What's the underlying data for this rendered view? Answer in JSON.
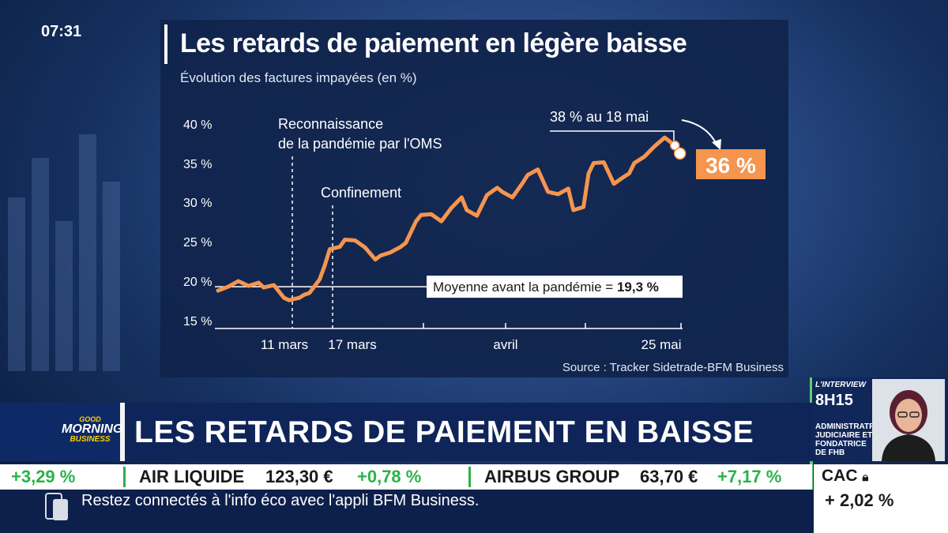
{
  "clock": "07:31",
  "chart_data": {
    "type": "line",
    "title": "Les retards de paiement en légère baisse",
    "subtitle": "Évolution des factures impayées (en %)",
    "y_ticks": [
      "40 %",
      "35 %",
      "30 %",
      "25 %",
      "20 %",
      "15 %"
    ],
    "ylim": [
      15,
      40
    ],
    "x_ticks": [
      "11 mars",
      "17 mars",
      "avril",
      "25 mai"
    ],
    "series": [
      {
        "x": [
          0,
          2,
          4,
          6,
          8,
          9,
          11,
          13,
          14,
          16,
          17,
          18,
          20,
          21,
          22,
          24,
          25,
          27,
          29,
          31,
          32,
          34,
          36,
          37,
          39,
          40,
          42,
          44,
          46,
          48,
          49,
          51,
          53,
          55,
          56,
          58,
          60,
          61,
          63,
          65,
          67,
          69,
          70,
          72,
          73,
          74,
          76,
          78,
          80,
          81,
          82,
          84,
          86,
          88,
          90,
          91
        ],
        "y": [
          18.8,
          19.3,
          20.0,
          19.4,
          19.8,
          19.2,
          19.5,
          17.9,
          17.6,
          17.9,
          18.3,
          18.5,
          20.2,
          21.9,
          24.0,
          24.3,
          25.2,
          25.1,
          24.2,
          22.7,
          23.2,
          23.6,
          24.3,
          24.8,
          27.5,
          28.3,
          28.4,
          27.5,
          29.2,
          30.5,
          28.9,
          28.2,
          30.8,
          31.7,
          31.2,
          30.5,
          32.3,
          33.3,
          34.0,
          31.2,
          30.9,
          31.6,
          28.9,
          29.3,
          33.5,
          34.8,
          34.9,
          32.2,
          33.1,
          33.5,
          34.8,
          35.6,
          36.9,
          38.0,
          37.0,
          36.0
        ]
      }
    ],
    "reference": {
      "label": "Moyenne avant la pandémie = ",
      "value_label": "19,3 %",
      "value": 19.3
    },
    "annotations": {
      "oms": [
        "Reconnaissance",
        "de la pandémie par l'OMS"
      ],
      "confinement": "Confinement",
      "peak": "38 % au 18 mai",
      "last": "36 %"
    },
    "source": "Source : Tracker Sidetrade-BFM Business",
    "line_color": "#f5954e",
    "highlight_color": "#f5954e"
  },
  "lower_third": {
    "logo": [
      "GOOD",
      "MORNING",
      "BUSINESS"
    ],
    "headline": "LES RETARDS DE PAIEMENT EN BAISSE"
  },
  "interview": {
    "label": "L'INTERVIEW",
    "time": "8H15",
    "role": "ADMINISTRATRICE JUDICIAIRE ET FONDATRICE DE FHB"
  },
  "ticker": {
    "first_change": "+3,29 %",
    "stock1_name": "AIR LIQUIDE",
    "stock1_price": "123,30 €",
    "stock1_change": "+0,78 %",
    "stock2_name": "AIRBUS GROUP",
    "stock2_price": "63,70 €",
    "stock2_change": "+7,17 %"
  },
  "cac": {
    "name": "CAC",
    "value": "+ 2,02 %"
  },
  "footer": {
    "text": "Restez connectés à l'info éco avec l'appli BFM Business."
  }
}
